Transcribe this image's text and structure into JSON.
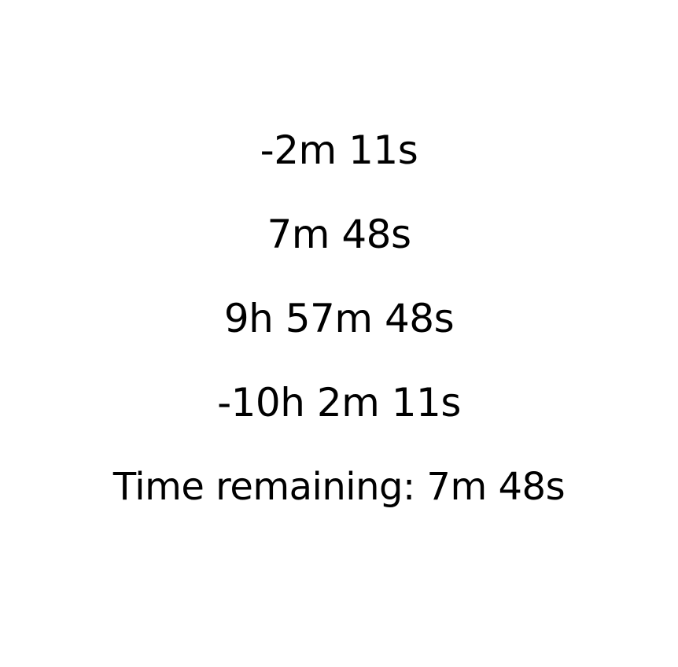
{
  "durations": {
    "negative_short": "-2m 11s",
    "positive_short": "7m 48s",
    "positive_long": "9h 57m 48s",
    "negative_long": "-10h 2m 11s",
    "time_remaining": "Time remaining: 7m 48s"
  }
}
